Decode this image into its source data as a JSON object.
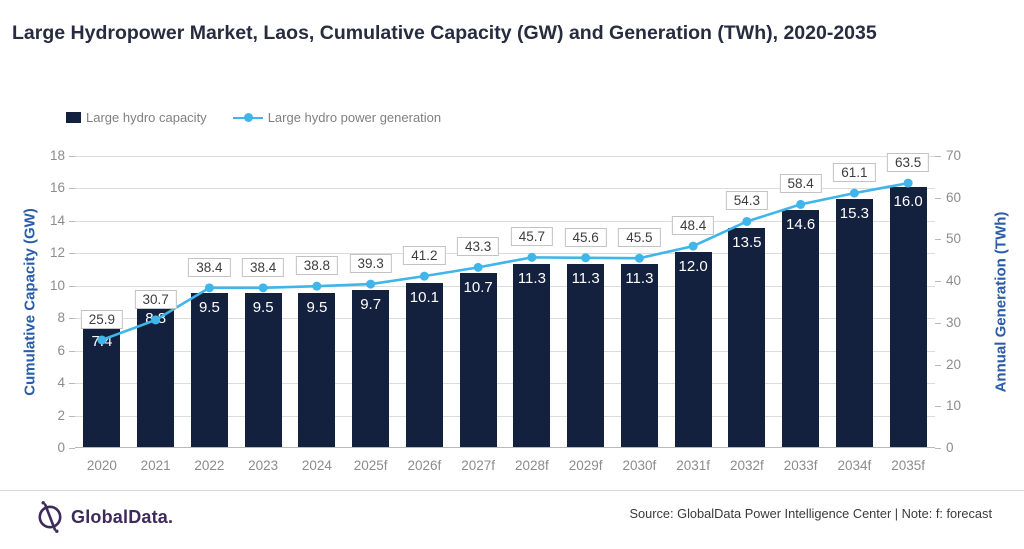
{
  "title": "Large Hydropower Market, Laos, Cumulative Capacity (GW) and Generation (TWh), 2020-2035",
  "legend": {
    "capacity_label": "Large hydro capacity",
    "generation_label": "Large hydro power generation"
  },
  "footer": {
    "logo_text": "GlobalData.",
    "source_text": "Source: GlobalData Power Intelligence Center | Note: f: forecast"
  },
  "colors": {
    "bar": "#13203E",
    "line": "#3FB5E9",
    "axis_title": "#2A5CA8",
    "logo": "#3E2B5B"
  },
  "chart_data": {
    "type": "bar",
    "subtype": "combo bar+line, dual axis",
    "title": "Large Hydropower Market, Laos, Cumulative Capacity (GW) and Generation (TWh), 2020-2035",
    "categories": [
      "2020",
      "2021",
      "2022",
      "2023",
      "2024",
      "2025f",
      "2026f",
      "2027f",
      "2028f",
      "2029f",
      "2030f",
      "2031f",
      "2032f",
      "2033f",
      "2034f",
      "2035f"
    ],
    "series": [
      {
        "name": "Large hydro capacity",
        "type": "bar",
        "axis": "left",
        "color": "#13203E",
        "values": [
          7.4,
          8.8,
          9.5,
          9.5,
          9.5,
          9.7,
          10.1,
          10.7,
          11.3,
          11.3,
          11.3,
          12.0,
          13.5,
          14.6,
          15.3,
          16.0
        ]
      },
      {
        "name": "Large hydro power generation",
        "type": "line",
        "axis": "right",
        "color": "#3FB5E9",
        "values": [
          25.9,
          30.7,
          38.4,
          38.4,
          38.8,
          39.3,
          41.2,
          43.3,
          45.7,
          45.6,
          45.5,
          48.4,
          54.3,
          58.4,
          61.1,
          63.5
        ]
      }
    ],
    "left_axis": {
      "label": "Cumulative Capacity (GW)",
      "min": 0,
      "max": 18,
      "step": 2
    },
    "right_axis": {
      "label": "Annual Generation (TWh)",
      "min": 0,
      "max": 70,
      "step": 10
    },
    "grid": true,
    "legend_position": "top-left",
    "data_labels": true
  }
}
